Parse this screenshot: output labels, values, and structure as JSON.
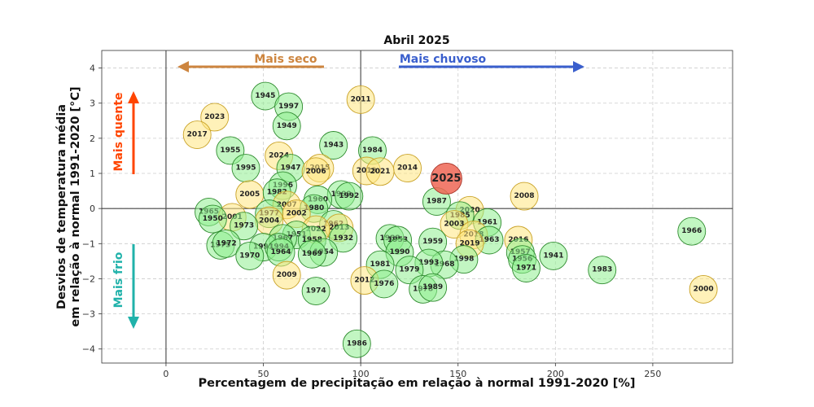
{
  "chart_data": {
    "type": "scatter",
    "title": "Abril 2025",
    "xlabel": "Percentagem de precipitação em relação à normal 1991-2020 [%]",
    "ylabel_line1": "Desvios de temperatura média",
    "ylabel_line2": "em relação à normal 1991-2020 [°C]",
    "xlim": [
      -33,
      291
    ],
    "ylim": [
      -4.4,
      4.5
    ],
    "xticks": [
      0,
      50,
      100,
      150,
      200,
      250
    ],
    "yticks": [
      -4,
      -3,
      -2,
      -1,
      0,
      1,
      2,
      3,
      4
    ],
    "grid": true,
    "reference_lines": {
      "x": 100,
      "y": 0
    },
    "annotations": {
      "dry": "Mais seco",
      "wet": "Mais chuvoso",
      "hot": "Mais quente",
      "cold": "Mais frio"
    },
    "colors": {
      "green": "#90ee90",
      "green_edge": "#2e8b2e",
      "yellow": "#ffe680",
      "yellow_edge": "#c9a227",
      "highlight": "#ee6655",
      "highlight_edge": "#a83226",
      "dry": "#cd853f",
      "wet": "#3a5fcd",
      "hot": "#ff4500",
      "cold": "#20b2aa"
    },
    "points": [
      {
        "year": "1945",
        "x": 51,
        "y": 3.2,
        "c": "green"
      },
      {
        "year": "1997",
        "x": 63,
        "y": 2.9,
        "c": "green"
      },
      {
        "year": "1949",
        "x": 62,
        "y": 2.35,
        "c": "green"
      },
      {
        "year": "2011",
        "x": 100,
        "y": 3.1,
        "c": "yellow"
      },
      {
        "year": "2023",
        "x": 25,
        "y": 2.6,
        "c": "yellow"
      },
      {
        "year": "2017",
        "x": 16,
        "y": 2.1,
        "c": "yellow"
      },
      {
        "year": "1943",
        "x": 86,
        "y": 1.8,
        "c": "green"
      },
      {
        "year": "1955",
        "x": 33,
        "y": 1.65,
        "c": "green"
      },
      {
        "year": "1984",
        "x": 106,
        "y": 1.65,
        "c": "green"
      },
      {
        "year": "2024",
        "x": 58,
        "y": 1.5,
        "c": "yellow"
      },
      {
        "year": "1995",
        "x": 41,
        "y": 1.15,
        "c": "green"
      },
      {
        "year": "1947",
        "x": 64,
        "y": 1.15,
        "c": "green"
      },
      {
        "year": "2015",
        "x": 79,
        "y": 1.15,
        "c": "yellow"
      },
      {
        "year": "2006",
        "x": 77,
        "y": 1.05,
        "c": "yellow"
      },
      {
        "year": "2014",
        "x": 124,
        "y": 1.15,
        "c": "yellow"
      },
      {
        "year": "2019",
        "x": 103,
        "y": 1.07,
        "c": "yellow"
      },
      {
        "year": "2021",
        "x": 110,
        "y": 1.05,
        "c": "yellow"
      },
      {
        "year": "2025",
        "x": 144,
        "y": 0.85,
        "c": "highlight"
      },
      {
        "year": "1996",
        "x": 60,
        "y": 0.65,
        "c": "green"
      },
      {
        "year": "2005",
        "x": 43,
        "y": 0.4,
        "c": "yellow"
      },
      {
        "year": "1982",
        "x": 57,
        "y": 0.45,
        "c": "green"
      },
      {
        "year": "1999",
        "x": 90,
        "y": 0.4,
        "c": "green"
      },
      {
        "year": "1992",
        "x": 94,
        "y": 0.35,
        "c": "green"
      },
      {
        "year": "1960",
        "x": 78,
        "y": 0.25,
        "c": "green"
      },
      {
        "year": "2008",
        "x": 184,
        "y": 0.35,
        "c": "yellow"
      },
      {
        "year": "1987",
        "x": 139,
        "y": 0.2,
        "c": "green"
      },
      {
        "year": "2007",
        "x": 62,
        "y": 0.1,
        "c": "yellow"
      },
      {
        "year": "1980",
        "x": 76,
        "y": 0,
        "c": "green"
      },
      {
        "year": "2020",
        "x": 156,
        "y": -0.05,
        "c": "yellow"
      },
      {
        "year": "1965",
        "x": 22,
        "y": -0.1,
        "c": "green"
      },
      {
        "year": "2001",
        "x": 34,
        "y": -0.25,
        "c": "yellow"
      },
      {
        "year": "1950",
        "x": 24,
        "y": -0.3,
        "c": "green"
      },
      {
        "year": "1977",
        "x": 53,
        "y": -0.15,
        "c": "green"
      },
      {
        "year": "2002",
        "x": 67,
        "y": -0.15,
        "c": "yellow"
      },
      {
        "year": "2004",
        "x": 53,
        "y": -0.35,
        "c": "yellow"
      },
      {
        "year": "1973",
        "x": 40,
        "y": -0.5,
        "c": "green"
      },
      {
        "year": "1985",
        "x": 151,
        "y": -0.2,
        "c": "green"
      },
      {
        "year": "1961",
        "x": 165,
        "y": -0.4,
        "c": "green"
      },
      {
        "year": "2003",
        "x": 148,
        "y": -0.45,
        "c": "yellow"
      },
      {
        "year": "1962",
        "x": 86,
        "y": -0.45,
        "c": "green"
      },
      {
        "year": "2013",
        "x": 89,
        "y": -0.55,
        "c": "yellow"
      },
      {
        "year": "2022",
        "x": 77,
        "y": -0.6,
        "c": "yellow"
      },
      {
        "year": "1951",
        "x": 67,
        "y": -0.75,
        "c": "green"
      },
      {
        "year": "2018",
        "x": 158,
        "y": -0.75,
        "c": "yellow"
      },
      {
        "year": "1963",
        "x": 166,
        "y": -0.9,
        "c": "green"
      },
      {
        "year": "2019",
        "x": 156,
        "y": -1.0,
        "c": "yellow"
      },
      {
        "year": "1958",
        "x": 75,
        "y": -0.9,
        "c": "green"
      },
      {
        "year": "1932",
        "x": 91,
        "y": -0.85,
        "c": "green"
      },
      {
        "year": "1967",
        "x": 60,
        "y": -0.85,
        "c": "green"
      },
      {
        "year": "1988",
        "x": 115,
        "y": -0.85,
        "c": "green"
      },
      {
        "year": "1953",
        "x": 119,
        "y": -0.9,
        "c": "green"
      },
      {
        "year": "1959",
        "x": 137,
        "y": -0.95,
        "c": "green"
      },
      {
        "year": "2016",
        "x": 181,
        "y": -0.9,
        "c": "yellow"
      },
      {
        "year": "1966",
        "x": 270,
        "y": -0.65,
        "c": "green"
      },
      {
        "year": "1975",
        "x": 28,
        "y": -1.05,
        "c": "green"
      },
      {
        "year": "1972",
        "x": 31,
        "y": -1.0,
        "c": "green"
      },
      {
        "year": "1990",
        "x": 120,
        "y": -1.25,
        "c": "green"
      },
      {
        "year": "1993",
        "x": 50,
        "y": -1.1,
        "c": "green"
      },
      {
        "year": "1994",
        "x": 58,
        "y": -1.1,
        "c": "green"
      },
      {
        "year": "1964",
        "x": 59,
        "y": -1.25,
        "c": "green"
      },
      {
        "year": "1954",
        "x": 81,
        "y": -1.25,
        "c": "green"
      },
      {
        "year": "1969",
        "x": 75,
        "y": -1.3,
        "c": "green"
      },
      {
        "year": "1970",
        "x": 43,
        "y": -1.35,
        "c": "green"
      },
      {
        "year": "1941",
        "x": 199,
        "y": -1.35,
        "c": "green"
      },
      {
        "year": "1957",
        "x": 182,
        "y": -1.25,
        "c": "green"
      },
      {
        "year": "1956",
        "x": 183,
        "y": -1.45,
        "c": "green"
      },
      {
        "year": "1998",
        "x": 153,
        "y": -1.45,
        "c": "green"
      },
      {
        "year": "1968",
        "x": 143,
        "y": -1.6,
        "c": "green"
      },
      {
        "year": "1993",
        "x": 135,
        "y": -1.55,
        "c": "green"
      },
      {
        "year": "1981",
        "x": 110,
        "y": -1.6,
        "c": "green"
      },
      {
        "year": "1971",
        "x": 185,
        "y": -1.7,
        "c": "green"
      },
      {
        "year": "1979",
        "x": 125,
        "y": -1.75,
        "c": "green"
      },
      {
        "year": "1983",
        "x": 224,
        "y": -1.75,
        "c": "green"
      },
      {
        "year": "2009",
        "x": 62,
        "y": -1.9,
        "c": "yellow"
      },
      {
        "year": "2012",
        "x": 102,
        "y": -2.05,
        "c": "yellow"
      },
      {
        "year": "1976",
        "x": 112,
        "y": -2.15,
        "c": "green"
      },
      {
        "year": "1974",
        "x": 77,
        "y": -2.35,
        "c": "green"
      },
      {
        "year": "1978",
        "x": 132,
        "y": -2.3,
        "c": "green"
      },
      {
        "year": "1989",
        "x": 137,
        "y": -2.25,
        "c": "green"
      },
      {
        "year": "2000",
        "x": 276,
        "y": -2.3,
        "c": "yellow"
      },
      {
        "year": "1986",
        "x": 98,
        "y": -3.85,
        "c": "green"
      }
    ]
  }
}
